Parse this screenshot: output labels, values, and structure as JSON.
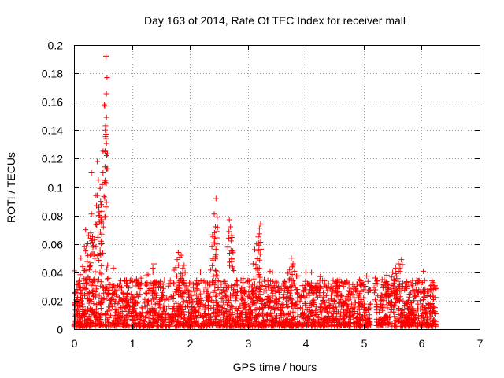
{
  "chart_data": {
    "type": "scatter",
    "title": "Day 163 of 2014, Rate Of TEC Index for receiver mall",
    "xlabel": "GPS time / hours",
    "ylabel": "ROTI / TECUs",
    "xlim": [
      0,
      7
    ],
    "ylim": [
      0,
      0.2
    ],
    "x_ticks": [
      0,
      1,
      2,
      3,
      4,
      5,
      6,
      7
    ],
    "x_tick_labels": [
      "0",
      "1",
      "2",
      "3",
      "4",
      "5",
      "6",
      "7"
    ],
    "y_ticks": [
      0,
      0.02,
      0.04,
      0.06,
      0.08,
      0.1,
      0.12,
      0.14,
      0.16,
      0.18,
      0.2
    ],
    "y_tick_labels": [
      "0",
      "0.02",
      "0.04",
      "0.06",
      "0.08",
      "0.1",
      "0.12",
      "0.14",
      "0.16",
      "0.18",
      "0.2"
    ],
    "grid": true,
    "marker": "+",
    "color": "#ff0000",
    "series": [
      {
        "name": "ROTI",
        "highlights": [
          [
            0.55,
            0.192
          ],
          [
            0.57,
            0.177
          ],
          [
            0.53,
            0.157
          ],
          [
            0.56,
            0.149
          ],
          [
            0.54,
            0.14
          ],
          [
            0.55,
            0.134
          ],
          [
            0.4,
            0.118
          ],
          [
            0.5,
            0.11
          ],
          [
            0.3,
            0.11
          ],
          [
            0.42,
            0.105
          ],
          [
            0.45,
            0.099
          ],
          [
            0.46,
            0.09
          ],
          [
            0.48,
            0.083
          ],
          [
            0.3,
            0.081
          ],
          [
            0.44,
            0.08
          ],
          [
            0.2,
            0.07
          ],
          [
            0.25,
            0.066
          ],
          [
            0.35,
            0.063
          ],
          [
            0.38,
            0.058
          ],
          [
            0.18,
            0.058
          ],
          [
            0.12,
            0.05
          ],
          [
            0.28,
            0.052
          ],
          [
            0.47,
            0.06
          ],
          [
            0.58,
            0.045
          ],
          [
            0.68,
            0.043
          ],
          [
            2.45,
            0.092
          ],
          [
            2.42,
            0.081
          ],
          [
            2.44,
            0.072
          ],
          [
            2.4,
            0.065
          ],
          [
            2.47,
            0.06
          ],
          [
            2.38,
            0.058
          ],
          [
            2.68,
            0.077
          ],
          [
            2.7,
            0.072
          ],
          [
            2.72,
            0.066
          ],
          [
            2.74,
            0.055
          ],
          [
            3.22,
            0.074
          ],
          [
            3.2,
            0.071
          ],
          [
            3.18,
            0.065
          ],
          [
            3.15,
            0.06
          ],
          [
            3.12,
            0.056
          ],
          [
            1.8,
            0.054
          ],
          [
            1.85,
            0.052
          ],
          [
            1.78,
            0.049
          ],
          [
            1.9,
            0.045
          ],
          [
            1.88,
            0.04
          ],
          [
            1.38,
            0.046
          ],
          [
            1.36,
            0.043
          ],
          [
            3.75,
            0.05
          ],
          [
            3.78,
            0.046
          ],
          [
            3.72,
            0.042
          ],
          [
            5.65,
            0.049
          ],
          [
            5.6,
            0.046
          ],
          [
            5.55,
            0.043
          ],
          [
            5.5,
            0.04
          ],
          [
            5.4,
            0.038
          ],
          [
            4.1,
            0.04
          ],
          [
            4.25,
            0.037
          ],
          [
            5.2,
            0.036
          ],
          [
            4.95,
            0.034
          ],
          [
            6.2,
            0.033
          ]
        ],
        "baseline": {
          "x_start": 0.0,
          "x_end": 6.25,
          "gap": [
            5.12,
            5.2
          ],
          "typical_min": 0.002,
          "typical_max": 0.035
        }
      }
    ]
  }
}
